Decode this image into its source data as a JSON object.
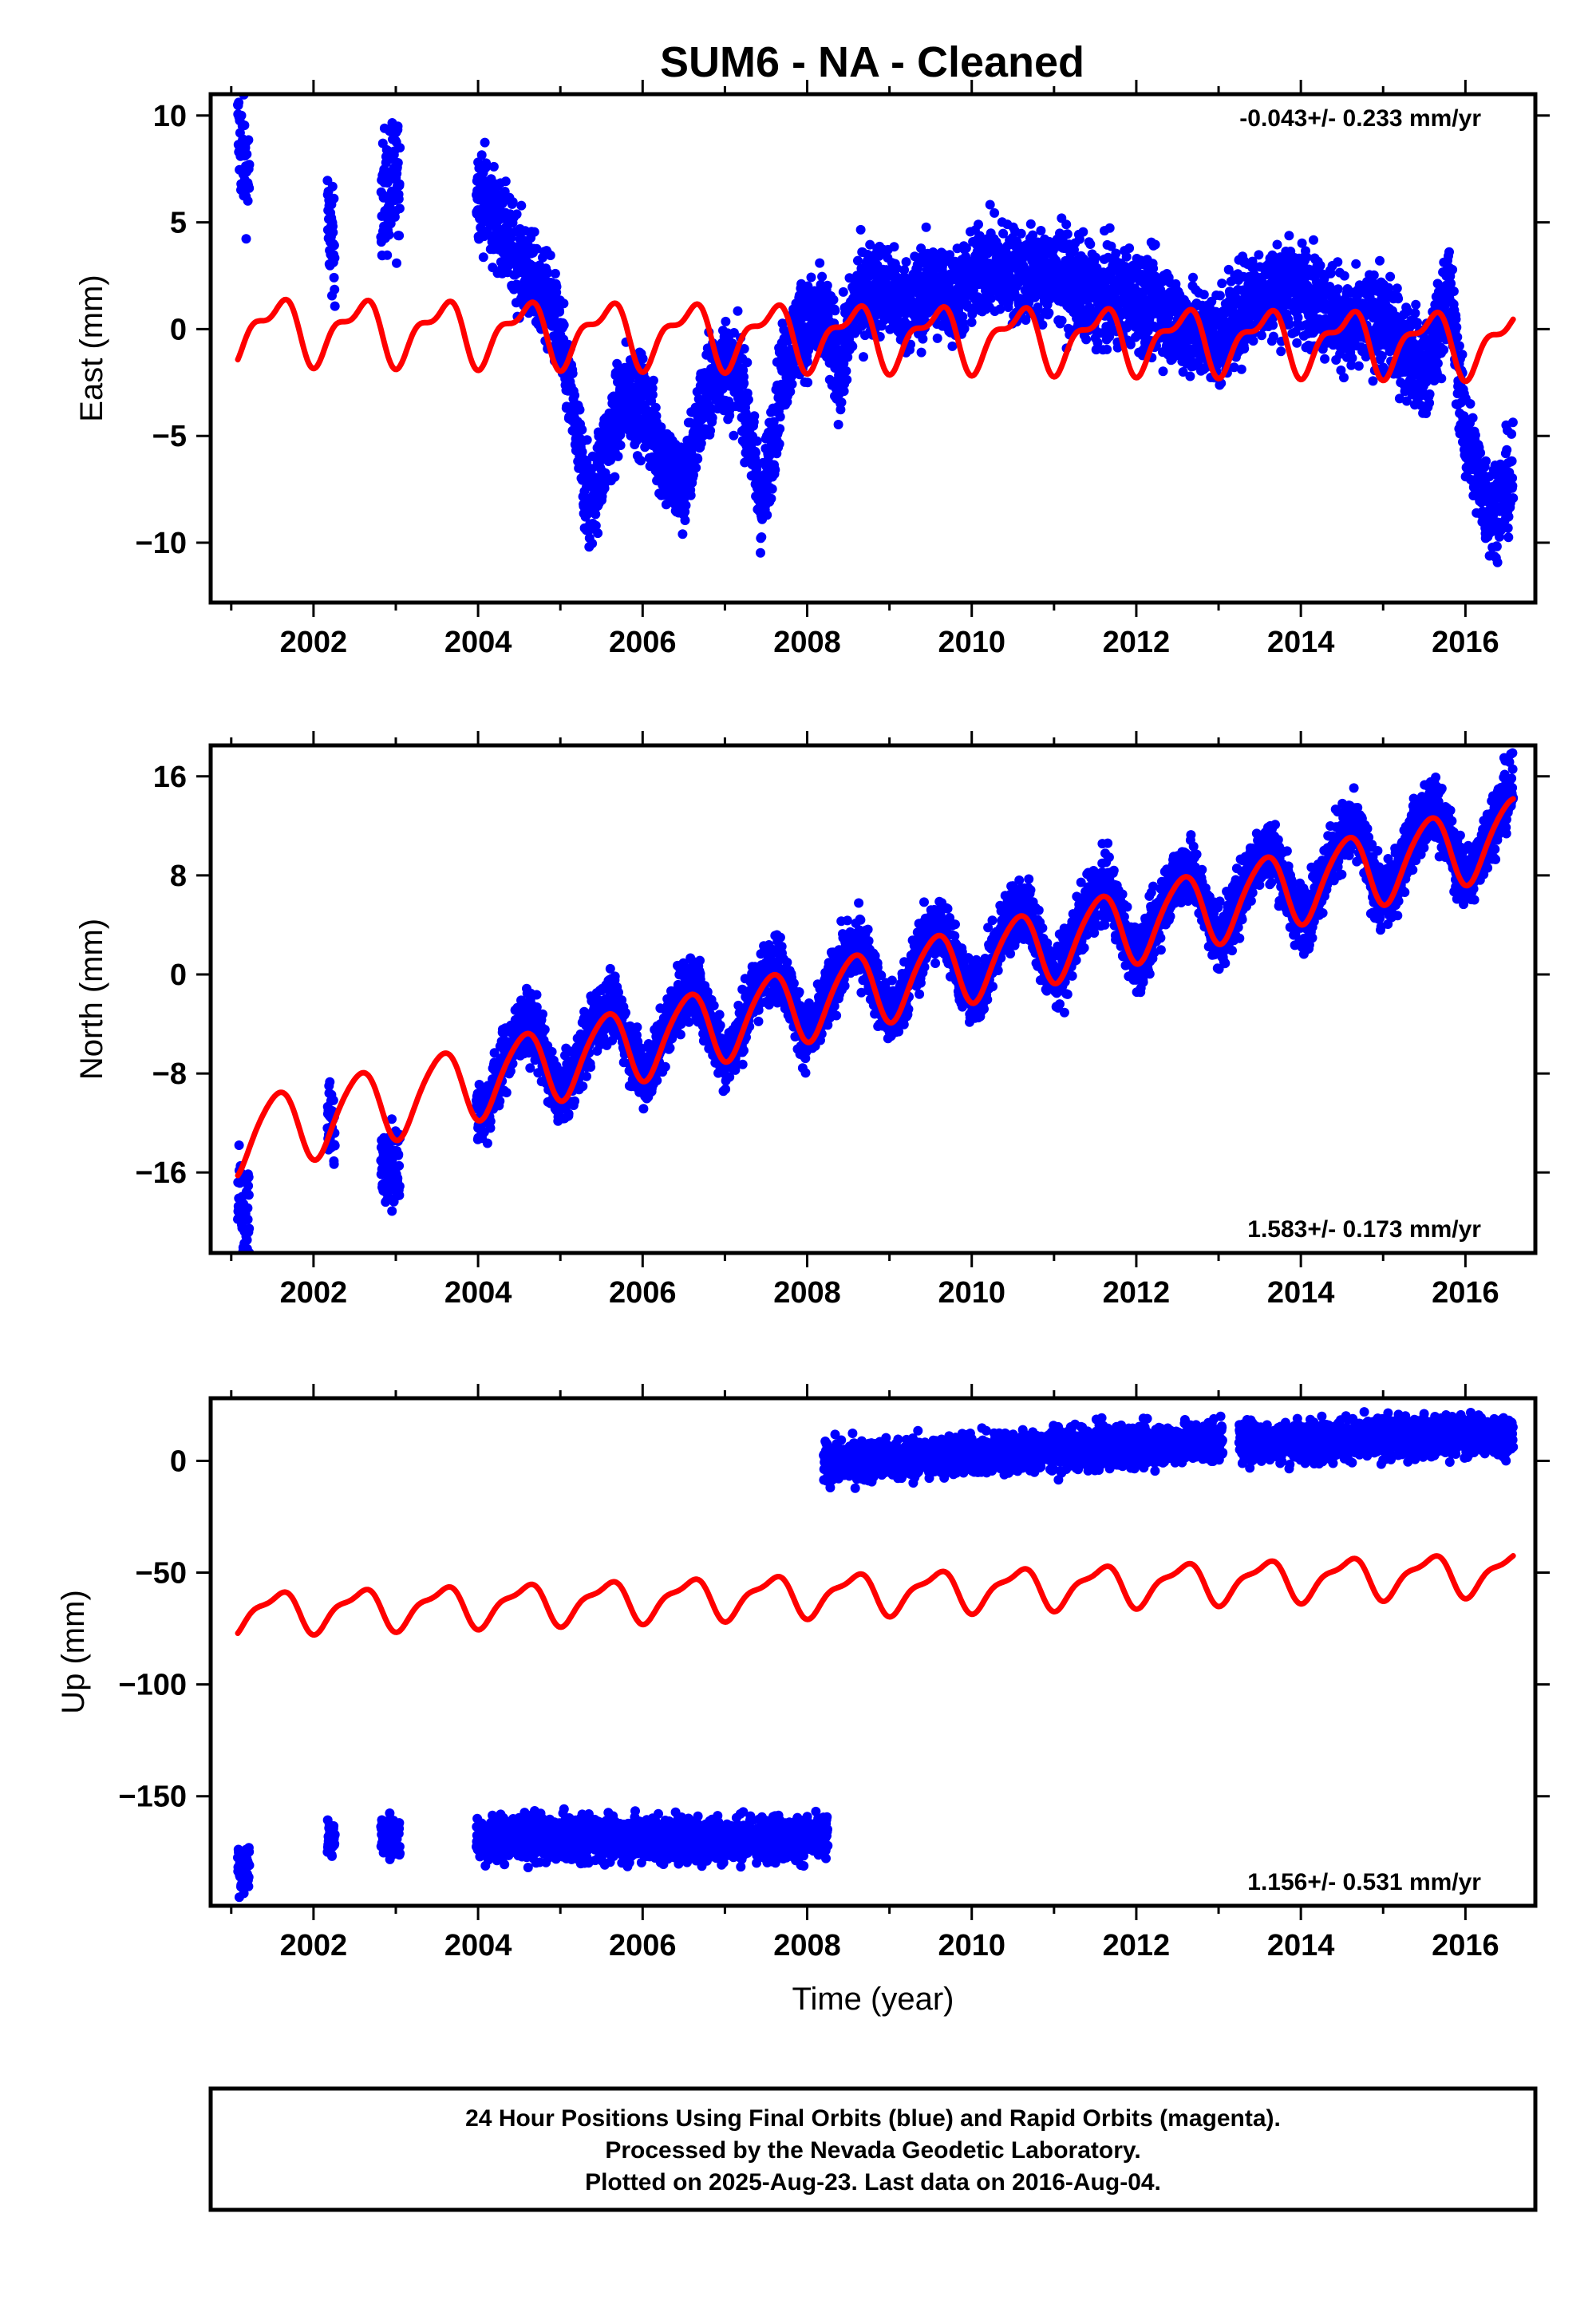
{
  "title": "SUM6  - NA - Cleaned",
  "footer": {
    "line1": "24 Hour Positions Using Final Orbits (blue) and Rapid Orbits (magenta).",
    "line2": "Processed by the Nevada Geodetic Laboratory.",
    "line3": "Plotted on 2025-Aug-23. Last data on 2016-Aug-04."
  },
  "colors": {
    "final_orbits": "#0000ff",
    "model": "#ff0000",
    "frame": "#000000"
  },
  "chart_data": [
    {
      "type": "scatter",
      "panel": "east",
      "ylabel": "East (mm)",
      "xlabel": "",
      "xlim": [
        2000.75,
        2016.85
      ],
      "ylim": [
        -12.8,
        11.0
      ],
      "xticks": [
        2002,
        2004,
        2006,
        2008,
        2010,
        2012,
        2014,
        2016
      ],
      "yticks": [
        -10,
        -5,
        0,
        5,
        10
      ],
      "rate_label": "-0.043+/- 0.233 mm/yr",
      "rate_label_position": "top-right",
      "observations": {
        "name": "Final Orbits",
        "color": "#0000ff",
        "segments": [
          {
            "x": [
              2001.08,
              2001.22
            ],
            "amp": 0,
            "t0": [
              2001.08,
              2001.22
            ],
            "y0": [
              9.2,
              7.0
            ],
            "noise": 1.3
          },
          {
            "x": [
              2002.17,
              2002.26
            ],
            "y0": [
              5.0,
              3.5
            ],
            "noise": 1.2
          },
          {
            "x": [
              2002.82,
              2003.05
            ],
            "y0": [
              6.0,
              7.0
            ],
            "noise": 1.5
          },
          {
            "x": [
              2003.98,
              2016.58
            ],
            "y0": [
              0,
              0
            ],
            "noise": 1.1
          }
        ],
        "trend_knots": {
          "x": [
            2003.98,
            2004.3,
            2004.6,
            2004.9,
            2005.1,
            2005.35,
            2005.6,
            2005.8,
            2006.0,
            2006.3,
            2006.5,
            2006.7,
            2006.95,
            2007.2,
            2007.45,
            2007.7,
            2007.9,
            2008.2,
            2008.4,
            2008.6,
            2008.9,
            2009.2,
            2009.5,
            2009.8,
            2010.2,
            2010.6,
            2011.1,
            2011.5,
            2011.9,
            2012.3,
            2012.6,
            2013.0,
            2013.4,
            2013.8,
            2014.2,
            2014.6,
            2014.95,
            2015.3,
            2015.55,
            2015.8,
            2016.0,
            2016.3,
            2016.58
          ],
          "y": [
            6.8,
            4.5,
            2.5,
            1.0,
            -2.5,
            -8.5,
            -5.0,
            -3.0,
            -3.5,
            -6.5,
            -7.5,
            -4.0,
            -1.5,
            -2.5,
            -8.5,
            -2.0,
            0.0,
            0.5,
            -2.0,
            1.5,
            2.0,
            1.0,
            2.0,
            1.5,
            3.0,
            2.5,
            2.5,
            1.5,
            1.5,
            1.0,
            0.0,
            -0.5,
            1.5,
            2.0,
            1.5,
            0.0,
            0.5,
            -1.0,
            -2.0,
            2.0,
            -5.0,
            -8.5,
            -7.0
          ]
        }
      },
      "model": {
        "name": "Model",
        "color": "#ff0000",
        "x": [
          2001.08,
          2016.58
        ],
        "offset": 0.0,
        "rate": -0.043,
        "annual_amplitude": 1.3,
        "semiannual_amplitude": 0.6
      }
    },
    {
      "type": "scatter",
      "panel": "north",
      "ylabel": "North (mm)",
      "xlabel": "",
      "xlim": [
        2000.75,
        2016.85
      ],
      "ylim": [
        -22.5,
        18.5
      ],
      "xticks": [
        2002,
        2004,
        2006,
        2008,
        2010,
        2012,
        2014,
        2016
      ],
      "yticks": [
        -16,
        -8,
        0,
        8,
        16
      ],
      "rate_label": "1.583+/- 0.173 mm/yr",
      "rate_label_position": "bottom-right",
      "observations": {
        "name": "Final Orbits",
        "color": "#0000ff",
        "segments": [
          {
            "x": [
              2001.08,
              2001.22
            ],
            "y0": [
              -18.5,
              -19.5
            ],
            "noise": 2.0
          },
          {
            "x": [
              2002.17,
              2002.26
            ],
            "y0": [
              -11.5,
              -12.5
            ],
            "noise": 1.5
          },
          {
            "x": [
              2002.82,
              2003.05
            ],
            "y0": [
              -16.0,
              -15.0
            ],
            "noise": 1.8
          },
          {
            "x": [
              2003.98,
              2016.58
            ],
            "y0": [
              0,
              0
            ],
            "noise": 1.3
          }
        ]
      },
      "model": {
        "name": "Model",
        "color": "#ff0000",
        "x": [
          2001.08,
          2016.58
        ],
        "offset": -13.2,
        "rate": 1.583,
        "annual_amplitude": 3.0,
        "semiannual_amplitude": 0.4
      }
    },
    {
      "type": "scatter",
      "panel": "up",
      "ylabel": "Up (mm)",
      "xlabel": "Time (year)",
      "xlim": [
        2000.75,
        2016.85
      ],
      "ylim": [
        -199,
        28
      ],
      "xticks": [
        2002,
        2004,
        2006,
        2008,
        2010,
        2012,
        2014,
        2016
      ],
      "yticks": [
        -150,
        -100,
        -50,
        0
      ],
      "rate_label": "1.156+/- 0.531 mm/yr",
      "rate_label_position": "bottom-right",
      "observations": {
        "name": "Final Orbits",
        "color": "#0000ff",
        "segments": [
          {
            "x": [
              2001.08,
              2001.22
            ],
            "y0": [
              -182,
              -182
            ],
            "noise": 5.0
          },
          {
            "x": [
              2002.17,
              2002.26
            ],
            "y0": [
              -169,
              -169
            ],
            "noise": 4.0
          },
          {
            "x": [
              2002.82,
              2003.05
            ],
            "y0": [
              -168,
              -168
            ],
            "noise": 5.0
          },
          {
            "x": [
              2003.98,
              2008.25
            ],
            "y0": [
              -169,
              -169
            ],
            "noise": 5.0
          },
          {
            "x": [
              2008.2,
              2013.05
            ],
            "y0": [
              -1,
              9
            ],
            "noise": 4.5
          },
          {
            "x": [
              2013.25,
              2016.58
            ],
            "y0": [
              8,
              12
            ],
            "noise": 4.5
          }
        ]
      },
      "model": {
        "name": "Model",
        "color": "#ff0000",
        "x": [
          2001.08,
          2016.58
        ],
        "offset": -68,
        "rate": 1.156,
        "annual_amplitude": 8.5,
        "semiannual_amplitude": 3.0
      }
    }
  ]
}
